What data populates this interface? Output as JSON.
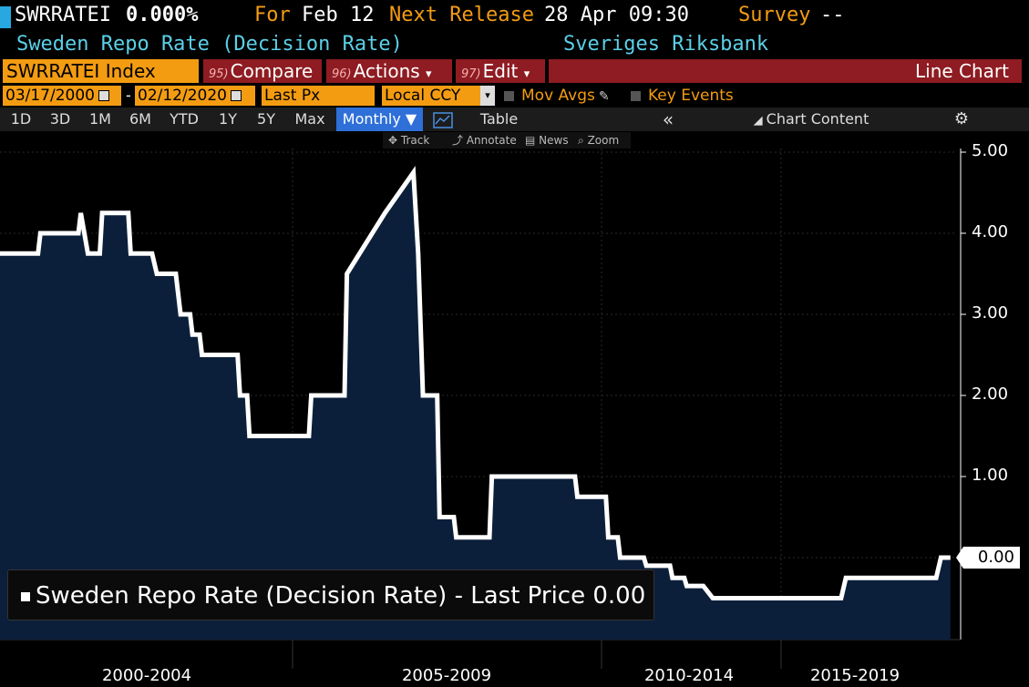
{
  "header": {
    "ticker": "SWRRATEI",
    "value": "0.000%",
    "for_label": "For",
    "for_date": "Feb 12",
    "next_label": "Next Release",
    "next_date": "28 Apr 09:30",
    "survey_label": "Survey",
    "survey_value": "--",
    "name": "Sweden Repo Rate (Decision Rate)",
    "source": "Sveriges Riksbank",
    "accent_orange": "#f39c12",
    "accent_cyan": "#5ad0e8"
  },
  "toolbar": {
    "security": "SWRRATEI Index",
    "compare_num": "95)",
    "compare": "Compare",
    "actions_num": "96)",
    "actions": "Actions",
    "edit_num": "97)",
    "edit": "Edit",
    "chart_type": "Line Chart",
    "dropdown_glyph": "▾"
  },
  "range": {
    "start": "03/17/2000",
    "end": "02/12/2020",
    "dash": "-",
    "field": "Last Px",
    "currency": "Local CCY",
    "mov_avgs": "Mov Avgs",
    "key_events": "Key Events"
  },
  "periods": {
    "items": [
      "1D",
      "3D",
      "1M",
      "6M",
      "YTD",
      "1Y",
      "5Y",
      "Max"
    ],
    "frequency": "Monthly ▼",
    "table": "Table",
    "collapse": "«",
    "chart_content": "Chart Content",
    "settings_icon": "gear-icon"
  },
  "mini_toolbar": {
    "track": "Track",
    "annotate": "Annotate",
    "news": "News",
    "zoom": "Zoom"
  },
  "legend": {
    "text": "Sweden Repo Rate (Decision Rate) - Last Price",
    "value": "0.00"
  },
  "chart_data": {
    "type": "area",
    "title": "",
    "xlabel": "",
    "ylabel": "",
    "x_tick_labels": [
      "2000-2004",
      "2005-2009",
      "2010-2014",
      "2015-2019"
    ],
    "y_tick_labels": [
      "5.00",
      "4.00",
      "3.00",
      "2.00",
      "1.00"
    ],
    "last_value_label": "0.00",
    "ylim": [
      -0.95,
      5.25
    ],
    "xlim": [
      2000.2,
      2020.3
    ],
    "grid": true,
    "line_color": "#ffffff",
    "fill_color": "#0c1f3a",
    "series": [
      {
        "name": "Sweden Repo Rate (Decision Rate) - Last Price",
        "x": [
          2000.2,
          2001.0,
          2001.05,
          2001.85,
          2001.9,
          2002.05,
          2002.15,
          2002.3,
          2002.35,
          2002.9,
          2002.95,
          2003.4,
          2003.5,
          2003.9,
          2004.0,
          2004.2,
          2004.25,
          2004.4,
          2004.45,
          2005.2,
          2005.25,
          2005.4,
          2005.45,
          2006.7,
          2006.75,
          2007.45,
          2007.5,
          2008.3,
          2008.9,
          2009.0,
          2009.1,
          2009.4,
          2009.45,
          2009.75,
          2009.8,
          2010.5,
          2010.55,
          2011.9,
          2011.95,
          2012.0,
          2012.1,
          2012.3,
          2012.35,
          2012.95,
          2013.0,
          2013.2,
          2013.25,
          2013.75,
          2013.8,
          2014.3,
          2014.35,
          2014.6,
          2014.65,
          2014.95,
          2015.0,
          2015.2,
          2015.3,
          2015.55,
          2015.6,
          2017.9,
          2018.0,
          2019.9,
          2020.0,
          2020.2
        ],
        "values": [
          3.75,
          3.75,
          4.0,
          4.0,
          4.25,
          3.75,
          3.75,
          3.75,
          4.25,
          4.25,
          3.75,
          3.75,
          3.5,
          3.5,
          3.0,
          3.0,
          2.75,
          2.75,
          2.5,
          2.5,
          2.0,
          2.0,
          1.5,
          1.5,
          2.0,
          2.0,
          3.5,
          4.25,
          4.75,
          3.75,
          2.0,
          2.0,
          0.5,
          0.5,
          0.25,
          0.25,
          1.0,
          1.0,
          1.0,
          1.0,
          1.0,
          1.0,
          0.75,
          0.75,
          0.25,
          0.25,
          0.0,
          0.0,
          -0.1,
          -0.1,
          -0.25,
          -0.25,
          -0.35,
          -0.35,
          -0.35,
          -0.5,
          -0.5,
          -0.5,
          -0.5,
          -0.5,
          -0.25,
          -0.25,
          0.0,
          0.0
        ]
      }
    ]
  }
}
